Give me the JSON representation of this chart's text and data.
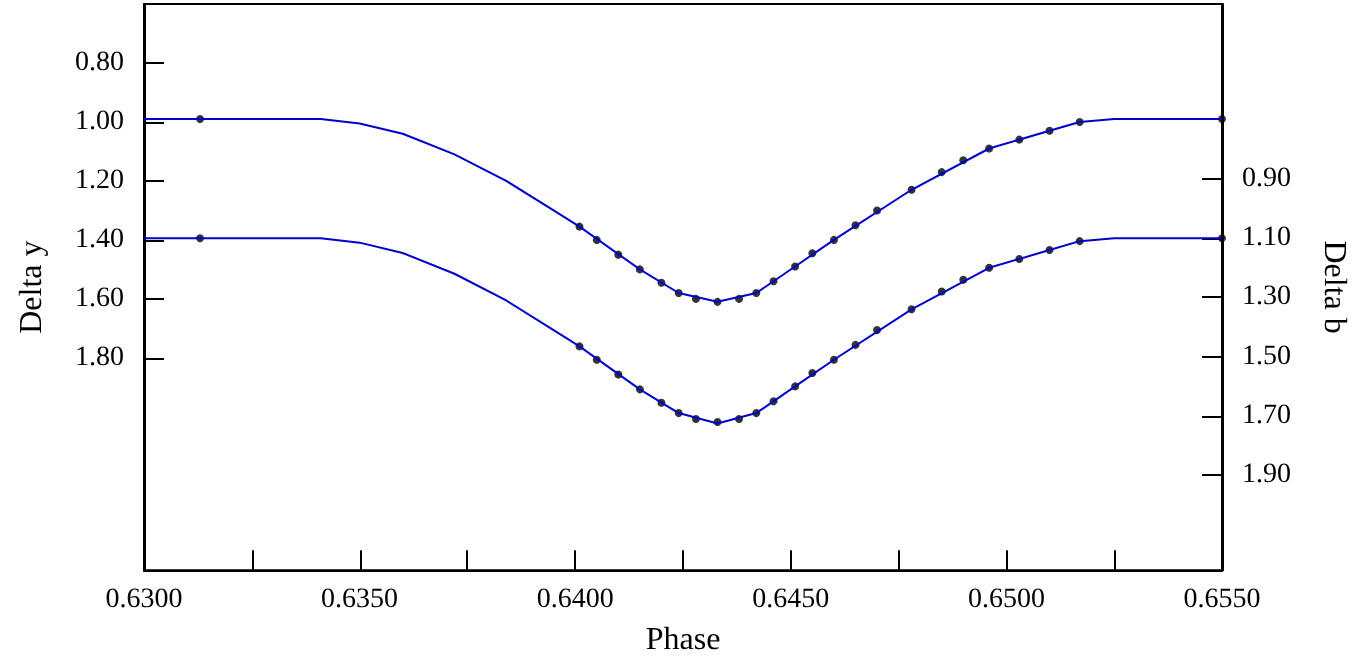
{
  "chart_data": {
    "type": "line",
    "xlabel": "Phase",
    "ylabel": "Delta y",
    "y2label": "Delta b",
    "xlim": [
      0.63,
      0.655
    ],
    "xticks": [
      {
        "value": 0.63,
        "label": "0.6300"
      },
      {
        "value": 0.6325,
        "label": null
      },
      {
        "value": 0.635,
        "label": "0.6350"
      },
      {
        "value": 0.6375,
        "label": null
      },
      {
        "value": 0.64,
        "label": "0.6400"
      },
      {
        "value": 0.6425,
        "label": null
      },
      {
        "value": 0.645,
        "label": "0.6450"
      },
      {
        "value": 0.6475,
        "label": null
      },
      {
        "value": 0.65,
        "label": "0.6500"
      },
      {
        "value": 0.6525,
        "label": null
      },
      {
        "value": 0.655,
        "label": "0.6550"
      }
    ],
    "ylim": [
      2.52,
      0.6
    ],
    "yticks": [
      {
        "value": 0.8,
        "label": "0.80"
      },
      {
        "value": 1.0,
        "label": "1.00"
      },
      {
        "value": 1.2,
        "label": "1.20"
      },
      {
        "value": 1.4,
        "label": "1.40"
      },
      {
        "value": 1.6,
        "label": "1.60"
      },
      {
        "value": 1.8,
        "label": "1.80"
      }
    ],
    "y2lim": [
      2.22,
      0.31
    ],
    "y2ticks": [
      {
        "value": 0.9,
        "label": "0.90"
      },
      {
        "value": 1.1,
        "label": "1.10"
      },
      {
        "value": 1.3,
        "label": "1.30"
      },
      {
        "value": 1.5,
        "label": "1.50"
      },
      {
        "value": 1.7,
        "label": "1.70"
      },
      {
        "value": 1.9,
        "label": "1.90"
      }
    ],
    "series": [
      {
        "marker": "none",
        "color": "#0000cc",
        "x": [
          0.63,
          0.6341,
          0.635,
          0.636,
          0.6372,
          0.6384,
          0.6395,
          0.6401,
          0.6415,
          0.6424,
          0.6433,
          0.6442,
          0.6451,
          0.646,
          0.6478,
          0.6496,
          0.651,
          0.6517,
          0.6525,
          0.655
        ],
        "values": [
          0.99,
          0.99,
          1.005,
          1.04,
          1.11,
          1.2,
          1.3,
          1.355,
          1.5,
          1.58,
          1.61,
          1.58,
          1.49,
          1.4,
          1.23,
          1.09,
          1.03,
          1.0,
          0.99,
          0.99
        ]
      },
      {
        "marker": "none",
        "color": "#0000cc",
        "axis": "y2",
        "x": [
          0.63,
          0.6341,
          0.635,
          0.636,
          0.6372,
          0.6384,
          0.6395,
          0.6401,
          0.6415,
          0.6424,
          0.6433,
          0.6442,
          0.6451,
          0.646,
          0.6478,
          0.6496,
          0.651,
          0.6517,
          0.6525,
          0.655
        ],
        "values": [
          1.1,
          1.1,
          1.115,
          1.15,
          1.22,
          1.31,
          1.41,
          1.465,
          1.61,
          1.69,
          1.725,
          1.69,
          1.6,
          1.51,
          1.34,
          1.2,
          1.14,
          1.11,
          1.1,
          1.1
        ]
      },
      {
        "type": "scatter",
        "marker": "circle",
        "color": "#000000",
        "x": [
          0.6313,
          0.6401,
          0.6405,
          0.641,
          0.6415,
          0.642,
          0.6424,
          0.6428,
          0.6433,
          0.6438,
          0.6442,
          0.6446,
          0.6451,
          0.6455,
          0.646,
          0.6465,
          0.647,
          0.6478,
          0.6485,
          0.649,
          0.6496,
          0.6503,
          0.651,
          0.6517,
          0.655
        ],
        "values": [
          0.99,
          1.355,
          1.4,
          1.45,
          1.5,
          1.545,
          1.58,
          1.6,
          1.61,
          1.6,
          1.58,
          1.54,
          1.49,
          1.445,
          1.4,
          1.35,
          1.3,
          1.23,
          1.17,
          1.13,
          1.09,
          1.06,
          1.03,
          1.0,
          0.99
        ]
      },
      {
        "type": "scatter",
        "marker": "circle",
        "color": "#000000",
        "axis": "y2",
        "x": [
          0.6313,
          0.6401,
          0.6405,
          0.641,
          0.6415,
          0.642,
          0.6424,
          0.6428,
          0.6433,
          0.6438,
          0.6442,
          0.6446,
          0.6451,
          0.6455,
          0.646,
          0.6465,
          0.647,
          0.6478,
          0.6485,
          0.649,
          0.6496,
          0.6503,
          0.651,
          0.6517,
          0.655
        ],
        "values": [
          1.1,
          1.465,
          1.51,
          1.56,
          1.61,
          1.655,
          1.69,
          1.71,
          1.72,
          1.71,
          1.69,
          1.65,
          1.6,
          1.555,
          1.51,
          1.46,
          1.41,
          1.34,
          1.28,
          1.24,
          1.2,
          1.17,
          1.14,
          1.11,
          1.1
        ]
      }
    ]
  }
}
